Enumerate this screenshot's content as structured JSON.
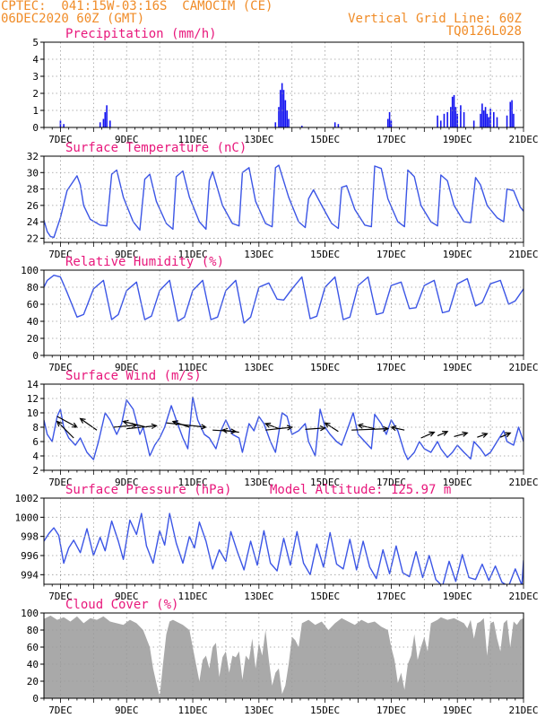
{
  "header": {
    "station": "CPTEC:  041:15W-03:16S  CAMOCIM (CE)",
    "run": "06DEC2020 60Z (GMT)",
    "grid_note": "Vertical Grid Line: 60Z",
    "code": "TQ0126L028"
  },
  "colors": {
    "header": "#f08c28",
    "title": "#e8187c",
    "line": "#3b55e6",
    "bar": "#1414f0",
    "cloud": "#a9a9a9",
    "grid": "#9a9a9a"
  },
  "chart_data": [
    {
      "id": "precipitation",
      "type": "bar",
      "title": "Precipitation (mm/h)",
      "ylim": [
        0,
        5
      ],
      "yticks": [
        0,
        1,
        2,
        3,
        4,
        5
      ],
      "xlim": [
        6.5,
        21
      ],
      "xtick_labels": [
        "7DEC",
        "9DEC",
        "11DEC",
        "13DEC",
        "15DEC",
        "17DEC",
        "19DEC",
        "21DEC"
      ],
      "grid": true,
      "x": [
        7.0,
        7.1,
        8.2,
        8.3,
        8.35,
        8.4,
        8.5,
        13.5,
        13.6,
        13.65,
        13.7,
        13.75,
        13.8,
        13.85,
        13.9,
        14.3,
        15.3,
        15.4,
        16.9,
        16.95,
        17.0,
        18.4,
        18.5,
        18.6,
        18.7,
        18.8,
        18.85,
        18.9,
        18.95,
        19.0,
        19.1,
        19.2,
        19.5,
        19.7,
        19.75,
        19.8,
        19.85,
        19.9,
        19.95,
        20.0,
        20.1,
        20.2,
        20.5,
        20.6,
        20.65,
        20.7
      ],
      "values": [
        0.4,
        0.2,
        0.3,
        0.5,
        0.9,
        1.3,
        0.4,
        0.3,
        1.2,
        2.2,
        2.6,
        2.2,
        1.6,
        1.0,
        0.5,
        0.1,
        0.3,
        0.2,
        0.5,
        0.9,
        0.4,
        0.7,
        0.4,
        0.8,
        0.9,
        1.2,
        1.8,
        1.9,
        1.2,
        0.8,
        1.3,
        0.9,
        0.4,
        0.8,
        1.4,
        1.0,
        1.2,
        0.8,
        0.6,
        1.1,
        0.9,
        0.6,
        0.7,
        1.5,
        1.6,
        0.8
      ]
    },
    {
      "id": "temperature",
      "type": "line",
      "title": "Surface Temperature (nC)",
      "ylim": [
        21.5,
        32
      ],
      "yticks": [
        22,
        24,
        26,
        28,
        30,
        32
      ],
      "xlim": [
        6.5,
        21
      ],
      "xtick_labels": [
        "7DEC",
        "9DEC",
        "11DEC",
        "13DEC",
        "15DEC",
        "17DEC",
        "19DEC",
        "21DEC"
      ],
      "grid": true,
      "days": [
        6.5,
        6.6,
        6.7,
        6.8,
        7.0,
        7.2,
        7.5,
        7.6,
        7.7,
        7.9,
        8.2,
        8.4,
        8.55,
        8.7,
        8.9,
        9.2,
        9.4,
        9.55,
        9.7,
        9.9,
        10.2,
        10.4,
        10.5,
        10.7,
        10.9,
        11.2,
        11.4,
        11.5,
        11.6,
        11.9,
        12.2,
        12.4,
        12.5,
        12.7,
        12.9,
        13.2,
        13.4,
        13.5,
        13.6,
        13.9,
        14.2,
        14.4,
        14.5,
        14.65,
        14.9,
        15.2,
        15.4,
        15.5,
        15.65,
        15.9,
        16.2,
        16.4,
        16.5,
        16.7,
        16.9,
        17.2,
        17.4,
        17.5,
        17.7,
        17.9,
        18.2,
        18.4,
        18.5,
        18.7,
        18.9,
        19.2,
        19.4,
        19.55,
        19.7,
        19.9,
        20.2,
        20.4,
        20.5,
        20.7,
        20.9,
        21.0
      ],
      "values": [
        24.2,
        22.8,
        22.2,
        22.1,
        24.5,
        27.8,
        29.6,
        28.5,
        26.0,
        24.3,
        23.6,
        23.5,
        29.8,
        30.3,
        27.0,
        24.0,
        23.0,
        29.2,
        29.8,
        26.5,
        23.8,
        23.1,
        29.5,
        30.2,
        27.0,
        24.0,
        23.1,
        29.0,
        30.1,
        26.0,
        23.8,
        23.5,
        30.0,
        30.6,
        26.5,
        23.8,
        23.4,
        30.6,
        30.9,
        27.0,
        24.0,
        23.3,
        26.8,
        27.9,
        26.0,
        23.8,
        23.2,
        28.2,
        28.4,
        25.5,
        23.6,
        23.4,
        30.8,
        30.5,
        26.8,
        24.0,
        23.4,
        30.3,
        29.5,
        26.0,
        24.0,
        23.5,
        29.7,
        29.0,
        26.0,
        24.0,
        23.9,
        29.4,
        28.5,
        26.0,
        24.5,
        24.0,
        28.0,
        27.8,
        25.8,
        25.3
      ]
    },
    {
      "id": "humidity",
      "type": "line",
      "title": "Relative Humidity (%)",
      "ylim": [
        0,
        100
      ],
      "yticks": [
        0,
        20,
        40,
        60,
        80,
        100
      ],
      "xlim": [
        6.5,
        21
      ],
      "xtick_labels": [
        "7DEC",
        "9DEC",
        "11DEC",
        "13DEC",
        "15DEC",
        "17DEC",
        "19DEC",
        "21DEC"
      ],
      "grid": true,
      "days": [
        6.5,
        6.6,
        6.8,
        7.0,
        7.2,
        7.5,
        7.7,
        8.0,
        8.3,
        8.55,
        8.75,
        9.0,
        9.3,
        9.55,
        9.75,
        10.0,
        10.3,
        10.55,
        10.75,
        11.0,
        11.3,
        11.55,
        11.75,
        12.0,
        12.3,
        12.55,
        12.75,
        13.0,
        13.3,
        13.55,
        13.75,
        14.0,
        14.3,
        14.55,
        14.75,
        15.0,
        15.3,
        15.55,
        15.75,
        16.0,
        16.3,
        16.55,
        16.75,
        17.0,
        17.3,
        17.55,
        17.75,
        18.0,
        18.3,
        18.55,
        18.75,
        19.0,
        19.3,
        19.55,
        19.75,
        20.0,
        20.3,
        20.55,
        20.75,
        21.0
      ],
      "values": [
        80,
        88,
        94,
        92,
        74,
        45,
        48,
        78,
        88,
        42,
        48,
        76,
        86,
        42,
        46,
        76,
        88,
        40,
        45,
        76,
        88,
        42,
        45,
        76,
        88,
        38,
        45,
        80,
        85,
        66,
        65,
        78,
        92,
        43,
        46,
        80,
        92,
        42,
        45,
        82,
        92,
        48,
        50,
        82,
        86,
        55,
        56,
        82,
        88,
        50,
        52,
        84,
        90,
        58,
        62,
        84,
        88,
        60,
        64,
        78
      ]
    },
    {
      "id": "wind",
      "type": "line",
      "title": "Surface Wind (m/s)",
      "ylim": [
        2,
        14
      ],
      "yticks": [
        2,
        4,
        6,
        8,
        10,
        12,
        14
      ],
      "xlim": [
        6.5,
        21
      ],
      "xtick_labels": [
        "7DEC",
        "9DEC",
        "11DEC",
        "13DEC",
        "15DEC",
        "17DEC",
        "19DEC",
        "21DEC"
      ],
      "grid": true,
      "days": [
        6.5,
        6.6,
        6.75,
        6.9,
        7.0,
        7.1,
        7.25,
        7.45,
        7.6,
        7.8,
        8.0,
        8.15,
        8.35,
        8.5,
        8.7,
        8.85,
        9.0,
        9.2,
        9.4,
        9.5,
        9.7,
        9.85,
        10.0,
        10.15,
        10.35,
        10.5,
        10.7,
        10.85,
        11.0,
        11.15,
        11.35,
        11.5,
        11.7,
        11.85,
        12.0,
        12.2,
        12.4,
        12.5,
        12.7,
        12.85,
        13.0,
        13.15,
        13.35,
        13.5,
        13.7,
        13.85,
        14.0,
        14.2,
        14.4,
        14.5,
        14.7,
        14.85,
        15.0,
        15.15,
        15.35,
        15.5,
        15.7,
        15.85,
        16.0,
        16.2,
        16.4,
        16.5,
        16.7,
        16.85,
        17.0,
        17.2,
        17.4,
        17.5,
        17.7,
        17.85,
        18.0,
        18.2,
        18.4,
        18.5,
        18.7,
        18.85,
        19.0,
        19.2,
        19.4,
        19.5,
        19.7,
        19.85,
        20.0,
        20.2,
        20.4,
        20.5,
        20.7,
        20.85,
        21.0
      ],
      "values": [
        9.0,
        7.0,
        6.0,
        9.5,
        10.5,
        8.0,
        6.5,
        5.5,
        6.5,
        4.5,
        3.5,
        6.0,
        10.0,
        9.0,
        7.0,
        8.5,
        11.8,
        10.5,
        7.0,
        8.0,
        4.0,
        5.5,
        6.5,
        8.0,
        11.0,
        9.0,
        6.5,
        5.0,
        12.2,
        9.0,
        7.0,
        6.5,
        5.0,
        7.5,
        9.0,
        7.0,
        6.5,
        4.5,
        8.5,
        7.5,
        9.5,
        8.5,
        6.0,
        4.5,
        10.0,
        9.5,
        7.0,
        7.5,
        8.5,
        6.0,
        4.0,
        10.5,
        8.0,
        7.0,
        6.0,
        5.5,
        8.0,
        10.0,
        7.0,
        6.0,
        5.0,
        9.8,
        8.5,
        7.0,
        9.0,
        7.5,
        4.5,
        3.5,
        4.5,
        6.0,
        5.0,
        4.5,
        6.0,
        5.0,
        3.8,
        4.5,
        5.5,
        4.5,
        3.6,
        6.0,
        5.0,
        4.0,
        4.5,
        6.0,
        7.5,
        6.0,
        5.5,
        8.0,
        6.0
      ]
    },
    {
      "id": "pressure",
      "type": "line",
      "title": "Surface Pressure (hPa)",
      "annotation": "Model Altitude: 125.97 m",
      "ylim": [
        993,
        1002
      ],
      "yticks": [
        994,
        996,
        998,
        1000,
        1002
      ],
      "xlim": [
        6.5,
        21
      ],
      "xtick_labels": [
        "7DEC",
        "9DEC",
        "11DEC",
        "13DEC",
        "15DEC",
        "17DEC",
        "19DEC",
        "21DEC"
      ],
      "grid": true,
      "days": [
        6.5,
        6.65,
        6.8,
        6.95,
        7.1,
        7.25,
        7.4,
        7.6,
        7.8,
        8.0,
        8.2,
        8.35,
        8.55,
        8.75,
        8.9,
        9.1,
        9.3,
        9.45,
        9.6,
        9.8,
        10.0,
        10.15,
        10.3,
        10.5,
        10.7,
        10.9,
        11.05,
        11.2,
        11.4,
        11.6,
        11.8,
        12.0,
        12.15,
        12.35,
        12.55,
        12.75,
        12.95,
        13.15,
        13.35,
        13.55,
        13.75,
        13.95,
        14.15,
        14.35,
        14.55,
        14.75,
        14.95,
        15.15,
        15.35,
        15.55,
        15.75,
        15.95,
        16.15,
        16.35,
        16.55,
        16.75,
        16.95,
        17.15,
        17.35,
        17.55,
        17.75,
        17.95,
        18.15,
        18.35,
        18.55,
        18.75,
        18.95,
        19.15,
        19.35,
        19.55,
        19.75,
        19.95,
        20.15,
        20.35,
        20.55,
        20.75,
        20.95,
        21.0
      ],
      "values": [
        997.5,
        998.3,
        998.9,
        998.1,
        995.2,
        996.8,
        997.6,
        996.3,
        998.8,
        996.0,
        997.9,
        996.5,
        999.6,
        997.5,
        995.6,
        999.7,
        998.2,
        1000.4,
        997.0,
        995.2,
        998.6,
        997.1,
        1000.4,
        997.3,
        995.2,
        998.0,
        996.8,
        999.5,
        997.5,
        994.6,
        996.6,
        995.4,
        998.5,
        996.4,
        994.5,
        997.5,
        995.0,
        998.6,
        995.2,
        994.4,
        997.8,
        995.0,
        998.5,
        995.2,
        994.0,
        997.2,
        994.8,
        998.4,
        995.1,
        994.6,
        997.7,
        994.5,
        997.5,
        994.8,
        993.6,
        996.6,
        994.1,
        997.0,
        994.2,
        993.8,
        996.4,
        993.7,
        996.0,
        993.5,
        992.8,
        995.4,
        993.3,
        996.1,
        993.7,
        993.5,
        995.1,
        993.4,
        994.9,
        993.2,
        992.8,
        994.6,
        992.9,
        995.5
      ]
    },
    {
      "id": "cloud",
      "type": "area",
      "title": "Cloud Cover (%)",
      "ylim": [
        0,
        100
      ],
      "yticks": [
        0,
        20,
        40,
        60,
        80,
        100
      ],
      "xlim": [
        6.5,
        21
      ],
      "xtick_labels": [
        "7DEC",
        "9DEC",
        "11DEC",
        "13DEC",
        "15DEC",
        "17DEC",
        "19DEC",
        "21DEC"
      ],
      "grid": true,
      "days": [
        6.5,
        6.7,
        6.9,
        7.1,
        7.3,
        7.5,
        7.7,
        7.9,
        8.1,
        8.3,
        8.5,
        8.7,
        8.9,
        9.1,
        9.3,
        9.5,
        9.7,
        9.8,
        9.9,
        10.0,
        10.1,
        10.2,
        10.3,
        10.4,
        10.5,
        10.7,
        10.9,
        11.0,
        11.1,
        11.2,
        11.3,
        11.4,
        11.5,
        11.6,
        11.7,
        11.8,
        11.9,
        12.0,
        12.1,
        12.2,
        12.3,
        12.4,
        12.5,
        12.6,
        12.7,
        12.8,
        12.9,
        13.0,
        13.1,
        13.2,
        13.3,
        13.4,
        13.5,
        13.6,
        13.7,
        13.8,
        13.9,
        14.0,
        14.1,
        14.2,
        14.3,
        14.5,
        14.7,
        14.9,
        15.1,
        15.3,
        15.5,
        15.7,
        15.9,
        16.1,
        16.3,
        16.5,
        16.7,
        16.9,
        17.0,
        17.1,
        17.2,
        17.3,
        17.4,
        17.5,
        17.6,
        17.7,
        17.8,
        17.9,
        18.0,
        18.1,
        18.2,
        18.3,
        18.4,
        18.5,
        18.7,
        18.9,
        19.1,
        19.2,
        19.3,
        19.4,
        19.5,
        19.6,
        19.7,
        19.8,
        19.9,
        20.0,
        20.1,
        20.2,
        20.3,
        20.4,
        20.5,
        20.6,
        20.7,
        20.8,
        20.9,
        21.0
      ],
      "values": [
        93,
        97,
        92,
        95,
        90,
        96,
        88,
        94,
        92,
        96,
        90,
        88,
        86,
        92,
        88,
        80,
        60,
        35,
        18,
        2,
        40,
        75,
        90,
        92,
        90,
        86,
        80,
        60,
        40,
        20,
        45,
        50,
        35,
        60,
        65,
        25,
        48,
        55,
        30,
        50,
        48,
        55,
        22,
        50,
        45,
        70,
        35,
        65,
        50,
        80,
        45,
        15,
        30,
        35,
        5,
        15,
        40,
        72,
        68,
        60,
        88,
        92,
        86,
        90,
        80,
        88,
        94,
        90,
        86,
        92,
        88,
        90,
        84,
        80,
        60,
        45,
        18,
        30,
        10,
        40,
        50,
        75,
        45,
        60,
        72,
        55,
        88,
        90,
        92,
        95,
        92,
        94,
        90,
        88,
        82,
        92,
        70,
        88,
        90,
        94,
        50,
        88,
        90,
        70,
        55,
        88,
        92,
        60,
        90,
        86,
        92,
        94
      ]
    }
  ]
}
